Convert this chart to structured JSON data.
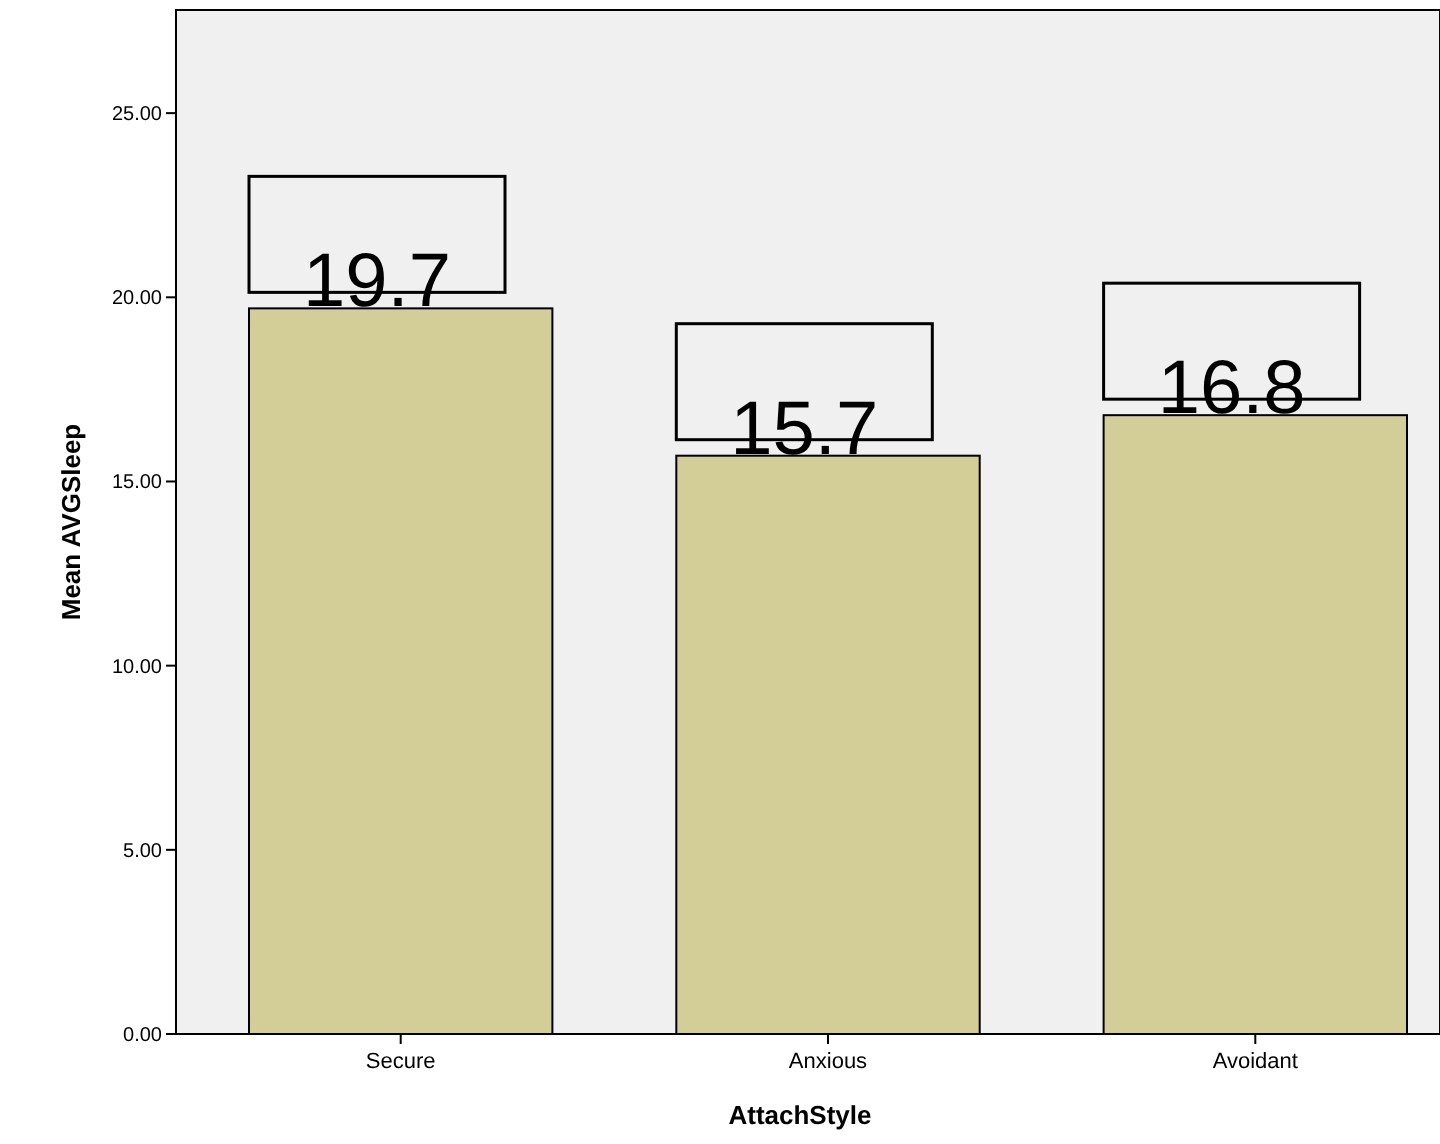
{
  "chart_data": {
    "type": "bar",
    "xlabel": "AttachStyle",
    "ylabel": "Mean AVGSleep",
    "categories": [
      "Secure",
      "Anxious",
      "Avoidant"
    ],
    "values": [
      19.7,
      15.7,
      16.8
    ],
    "color": "#d3ce97",
    "data_labels": true,
    "ylim": [
      0,
      27.8
    ],
    "yticks": [
      {
        "value": 0,
        "label": "0.00"
      },
      {
        "value": 5,
        "label": "5.00"
      },
      {
        "value": 10,
        "label": "10.00"
      },
      {
        "value": 15,
        "label": "15.00"
      },
      {
        "value": 20,
        "label": "20.00"
      },
      {
        "value": 25,
        "label": "25.00"
      }
    ],
    "grid": false
  }
}
